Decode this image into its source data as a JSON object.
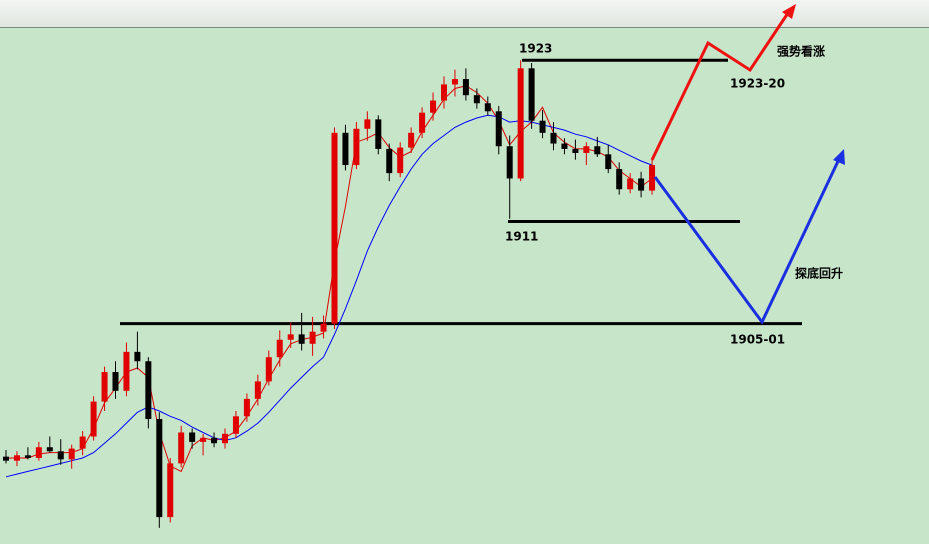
{
  "chart_data": {
    "type": "candlestick",
    "up_color": "#e00000",
    "down_color": "#000000",
    "open": [
      1893.5,
      1893.2,
      1893.6,
      1893.4,
      1894.2,
      1893.9,
      1893.3,
      1894.1,
      1895.0,
      1897.6,
      1899.8,
      1898.4,
      1901.3,
      1900.6,
      1896.3,
      1889.0,
      1893.0,
      1895.3,
      1894.6,
      1894.9,
      1894.5,
      1895.2,
      1896.5,
      1897.8,
      1899.1,
      1900.9,
      1902.2,
      1902.6,
      1901.9,
      1902.8,
      1903.4,
      1917.6,
      1915.2,
      1917.9,
      1918.6,
      1916.4,
      1914.6,
      1916.5,
      1917.6,
      1919.1,
      1920.0,
      1921.2,
      1921.6,
      1920.4,
      1919.8,
      1919.2,
      1916.6,
      1914.2,
      1922.4,
      1918.5,
      1917.6,
      1916.8,
      1916.4,
      1916.1,
      1916.6,
      1916.0,
      1914.9,
      1913.4,
      1914.2,
      1913.3
    ],
    "high": [
      1894.0,
      1893.9,
      1894.2,
      1894.6,
      1895.0,
      1894.8,
      1894.4,
      1895.4,
      1898.0,
      1900.2,
      1900.6,
      1902.0,
      1902.8,
      1900.9,
      1896.8,
      1893.4,
      1895.8,
      1895.6,
      1895.2,
      1895.3,
      1895.6,
      1896.9,
      1898.2,
      1899.6,
      1901.4,
      1902.9,
      1903.5,
      1904.2,
      1903.9,
      1904.0,
      1918.0,
      1918.2,
      1918.4,
      1919.2,
      1918.9,
      1916.8,
      1916.9,
      1918.0,
      1919.5,
      1920.6,
      1921.8,
      1922.3,
      1922.4,
      1920.9,
      1920.3,
      1919.6,
      1917.4,
      1923.0,
      1922.8,
      1919.3,
      1918.4,
      1917.2,
      1917.1,
      1916.9,
      1917.3,
      1916.7,
      1915.4,
      1914.6,
      1914.7,
      1915.6
    ],
    "low": [
      1893.0,
      1892.8,
      1893.3,
      1893.2,
      1893.8,
      1892.9,
      1892.6,
      1893.6,
      1894.7,
      1896.9,
      1897.8,
      1898.0,
      1900.0,
      1895.6,
      1888.2,
      1888.6,
      1892.7,
      1894.1,
      1893.6,
      1894.2,
      1894.1,
      1894.9,
      1896.1,
      1897.3,
      1898.8,
      1900.2,
      1901.6,
      1901.4,
      1901.0,
      1902.3,
      1903.0,
      1914.8,
      1914.9,
      1917.0,
      1916.0,
      1914.0,
      1914.3,
      1916.1,
      1917.2,
      1918.5,
      1919.4,
      1920.3,
      1920.0,
      1919.4,
      1918.9,
      1916.0,
      1911.2,
      1914.0,
      1917.9,
      1917.2,
      1916.3,
      1916.0,
      1915.6,
      1915.2,
      1915.8,
      1914.6,
      1913.0,
      1913.1,
      1912.8,
      1913.0
    ],
    "close": [
      1893.2,
      1893.6,
      1893.4,
      1894.2,
      1893.9,
      1893.3,
      1894.1,
      1895.0,
      1897.6,
      1899.8,
      1898.4,
      1901.3,
      1900.6,
      1896.3,
      1889.0,
      1893.0,
      1895.3,
      1894.6,
      1894.9,
      1894.5,
      1895.2,
      1896.5,
      1897.8,
      1899.1,
      1900.9,
      1902.2,
      1902.6,
      1901.9,
      1902.8,
      1903.4,
      1917.6,
      1915.2,
      1917.9,
      1918.6,
      1916.4,
      1914.6,
      1916.5,
      1917.6,
      1919.1,
      1920.0,
      1921.2,
      1921.6,
      1920.4,
      1919.8,
      1919.2,
      1916.6,
      1914.2,
      1922.4,
      1918.5,
      1917.6,
      1916.8,
      1916.4,
      1916.1,
      1916.6,
      1916.0,
      1914.9,
      1913.4,
      1914.2,
      1913.3,
      1915.2
    ],
    "series": [
      {
        "color": "#e00000",
        "values": [
          1893.4,
          1893.4,
          1893.4,
          1893.7,
          1893.8,
          1893.8,
          1893.8,
          1894.1,
          1895.6,
          1897.5,
          1898.6,
          1899.8,
          1900.1,
          1899.4,
          1895.3,
          1892.8,
          1892.4,
          1894.3,
          1894.9,
          1894.7,
          1894.9,
          1895.4,
          1896.5,
          1897.8,
          1899.3,
          1900.7,
          1901.9,
          1902.2,
          1902.4,
          1902.7,
          1908.0,
          1912.1,
          1916.9,
          1917.2,
          1917.6,
          1916.5,
          1915.8,
          1916.2,
          1917.7,
          1918.9,
          1920.1,
          1920.9,
          1921.1,
          1920.6,
          1919.8,
          1918.5,
          1916.7,
          1917.7,
          1918.4,
          1919.5,
          1917.6,
          1916.9,
          1916.4,
          1916.4,
          1916.2,
          1915.8,
          1914.8,
          1914.2,
          1913.6,
          1914.2
        ]
      },
      {
        "color": "#0000ff",
        "values": [
          1892.0,
          1892.2,
          1892.4,
          1892.6,
          1892.8,
          1893.0,
          1893.2,
          1893.4,
          1893.8,
          1894.5,
          1895.2,
          1896.0,
          1896.8,
          1897.2,
          1896.9,
          1896.5,
          1896.2,
          1895.7,
          1895.3,
          1894.9,
          1894.7,
          1894.9,
          1895.4,
          1896.0,
          1896.8,
          1897.7,
          1898.6,
          1899.4,
          1900.2,
          1900.9,
          1902.6,
          1904.5,
          1906.6,
          1908.8,
          1910.6,
          1912.2,
          1913.6,
          1914.9,
          1916.0,
          1916.8,
          1917.4,
          1918.0,
          1918.4,
          1918.7,
          1918.9,
          1918.8,
          1918.4,
          1918.5,
          1918.4,
          1918.2,
          1918.0,
          1917.8,
          1917.5,
          1917.3,
          1917.0,
          1916.7,
          1916.3,
          1915.9,
          1915.5,
          1915.2
        ]
      }
    ],
    "ylim": [
      1887,
      1925.4
    ],
    "levels": [
      1923,
      1911,
      1903.4
    ],
    "annotations": [
      "1923-20",
      "强势看涨",
      "探底回升",
      "1905-01"
    ]
  }
}
